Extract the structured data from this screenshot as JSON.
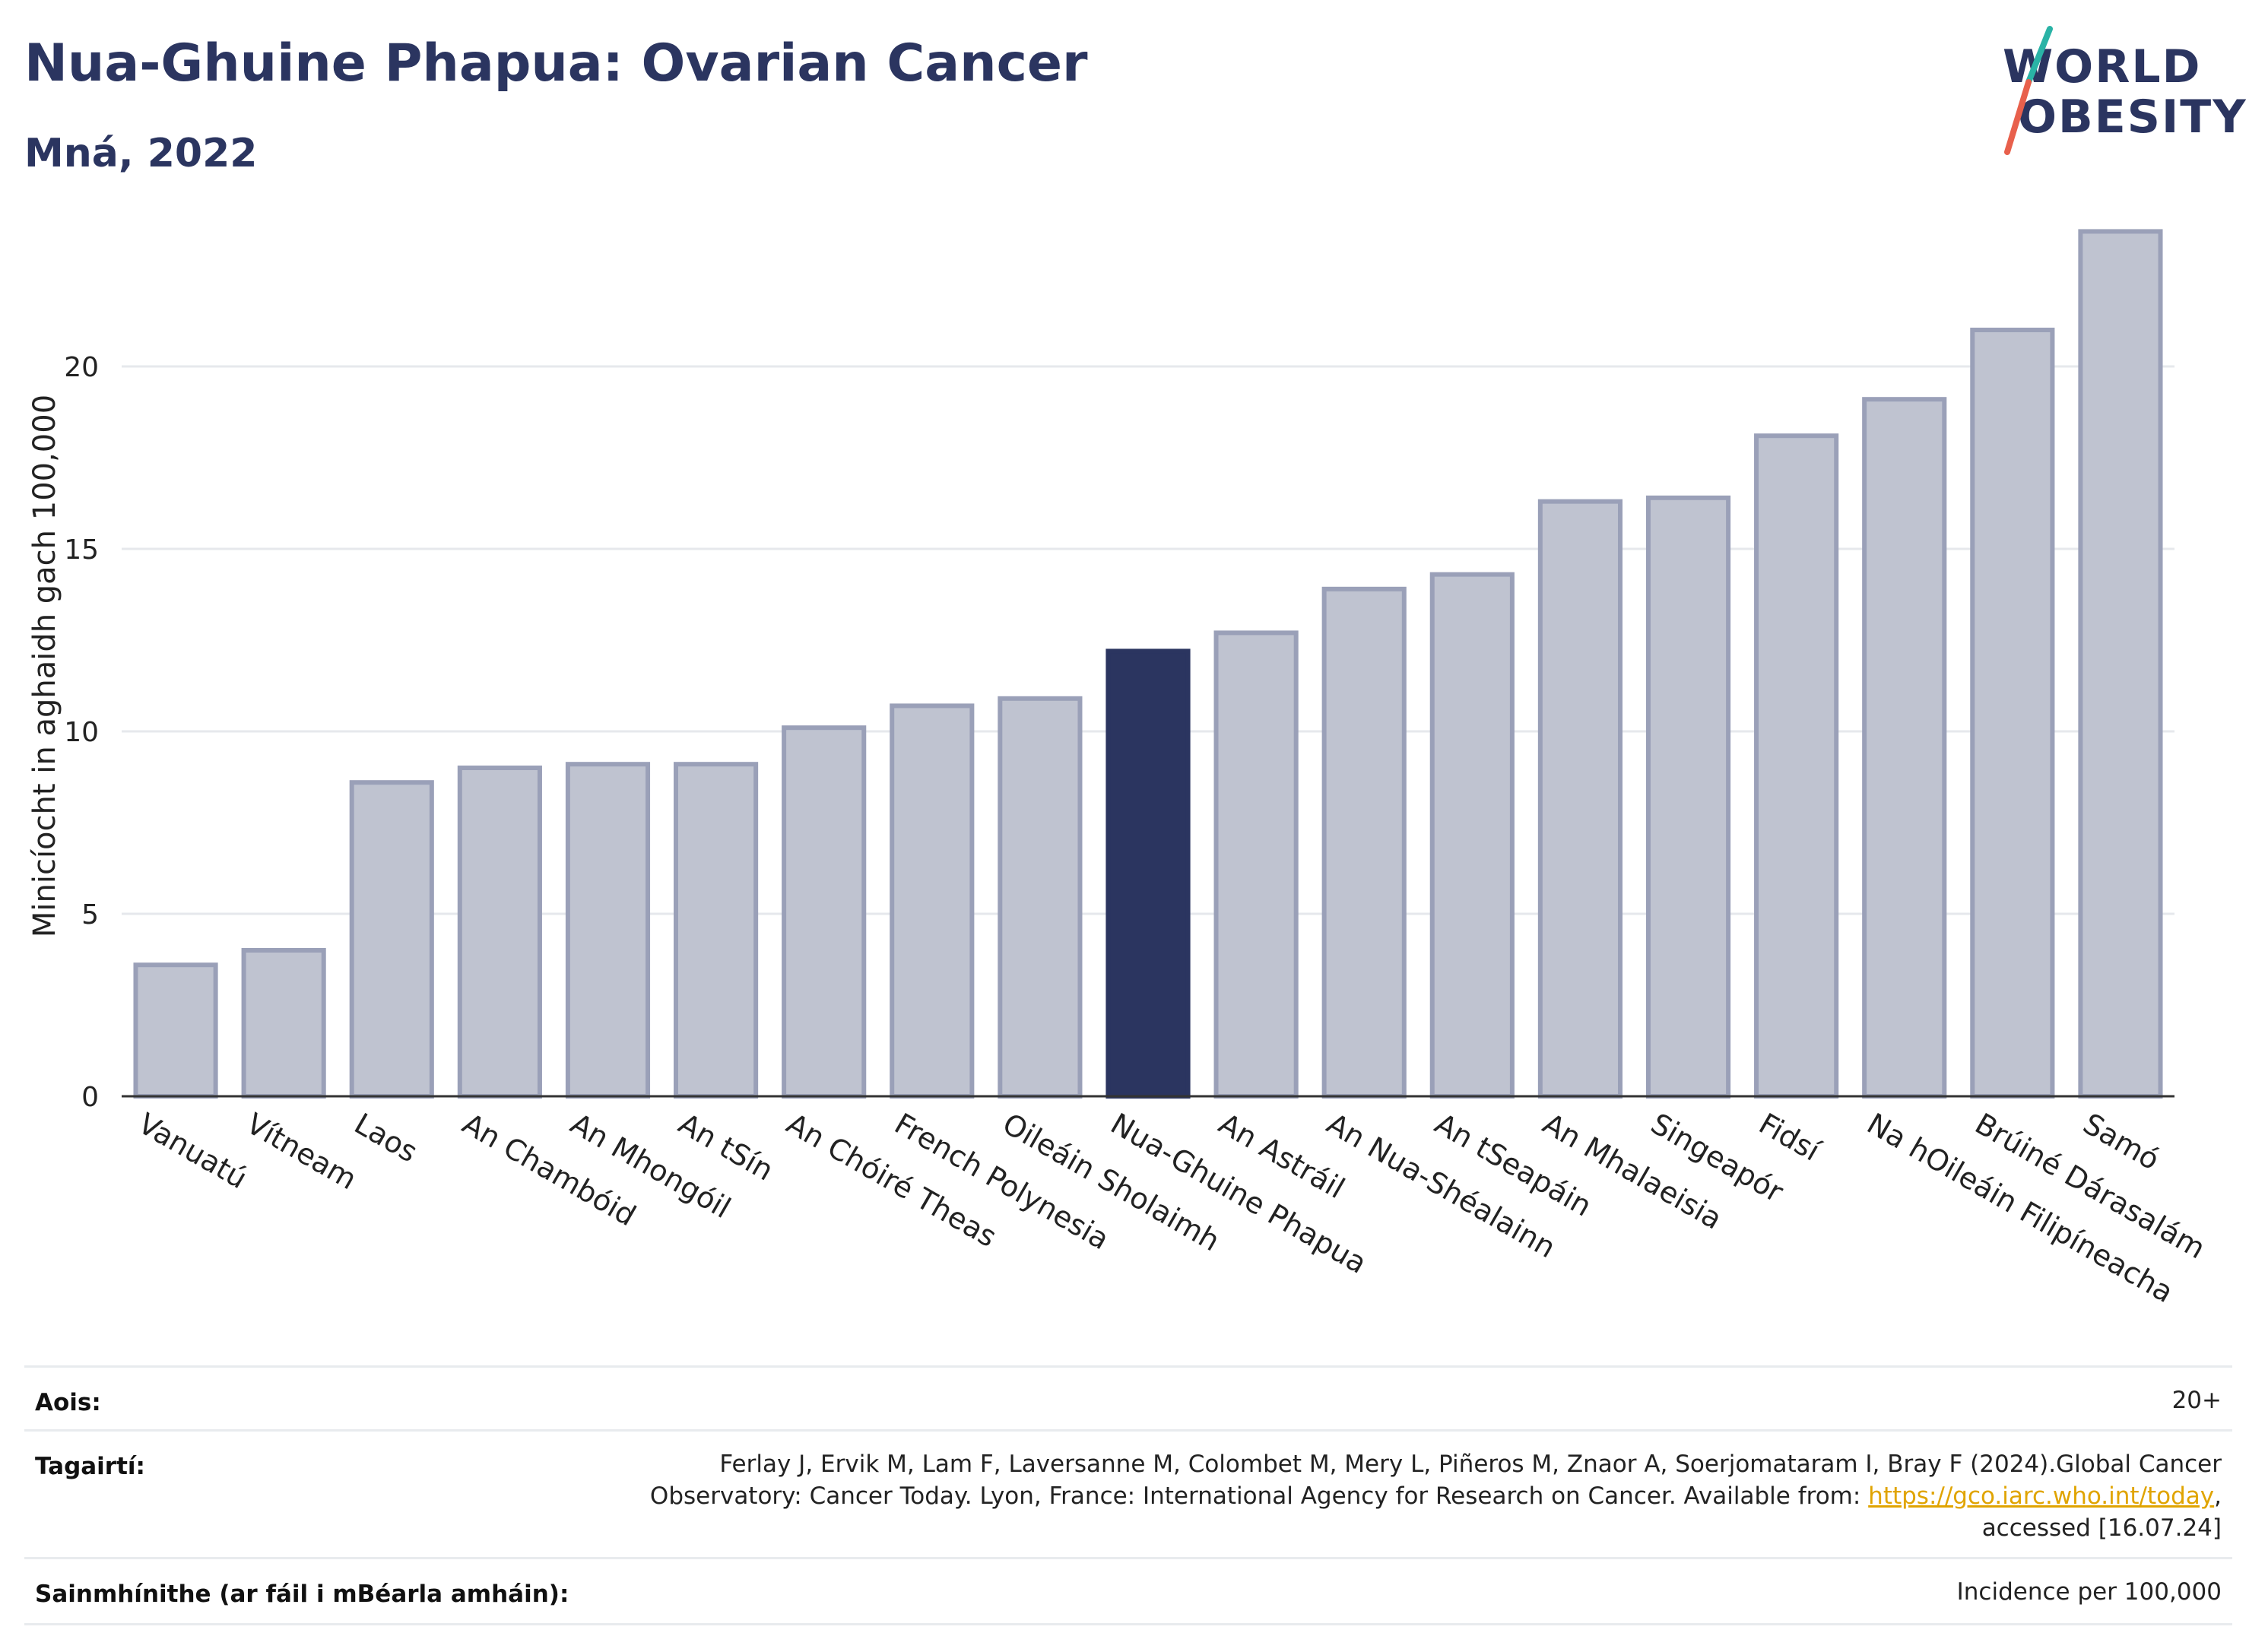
{
  "header": {
    "title": "Nua-Ghuine Phapua: Ovarian Cancer",
    "subtitle": "Mná, 2022"
  },
  "logo": {
    "line1": "WORLD",
    "line2": "OBESITY",
    "accent_colors": [
      "#2ab3a6",
      "#e8604c"
    ]
  },
  "colors": {
    "bar": "#bfc3d0",
    "bar_edge": "#9aa0b8",
    "highlight": "#2b3560",
    "text": "#2b3560",
    "grid": "#e6e8ec"
  },
  "chart_data": {
    "type": "bar",
    "title": "",
    "xlabel": "",
    "ylabel": "Minicíocht in aghaidh gach 100,000",
    "ylim": [
      0,
      24
    ],
    "yticks": [
      0,
      5,
      10,
      15,
      20
    ],
    "grid": true,
    "highlight": "Nua-Ghuine Phapua",
    "categories": [
      "Vanuatú",
      "Vítneam",
      "Laos",
      "An Chambóid",
      "An Mhongóil",
      "An tSín",
      "An Chóiré Theas",
      "French Polynesia",
      "Oileáin Sholaimh",
      "Nua-Ghuine Phapua",
      "An Astráil",
      "An Nua-Shéalainn",
      "An tSeapáin",
      "An Mhalaeisia",
      "Singeapór",
      "Fidsí",
      "Na hOileáin Filipíneacha",
      "Brúiné Dárasalám",
      "Samó"
    ],
    "values": [
      3.6,
      4.0,
      8.6,
      9.0,
      9.1,
      9.1,
      10.1,
      10.7,
      10.9,
      12.2,
      12.7,
      13.9,
      14.3,
      16.3,
      16.4,
      18.1,
      19.1,
      21.0,
      23.7
    ]
  },
  "meta": {
    "age_label": "Aois:",
    "age_value": "20+",
    "ref_label": "Tagairtí:",
    "ref_line1": "Ferlay J, Ervik M, Lam F, Laversanne M, Colombet M, Mery L, Piñeros M, Znaor A, Soerjomataram I, Bray F (2024).Global Cancer",
    "ref_line2_pre": "Observatory: Cancer Today. Lyon, France: International Agency for Research on Cancer. Available from: ",
    "ref_link": "https://gco.iarc.who.int/today",
    "ref_line2_post": ",",
    "ref_line3": "accessed [16.07.24]",
    "def_label": "Sainmhínithe (ar fáil i mBéarla amháin):",
    "def_value": "Incidence per 100,000"
  }
}
